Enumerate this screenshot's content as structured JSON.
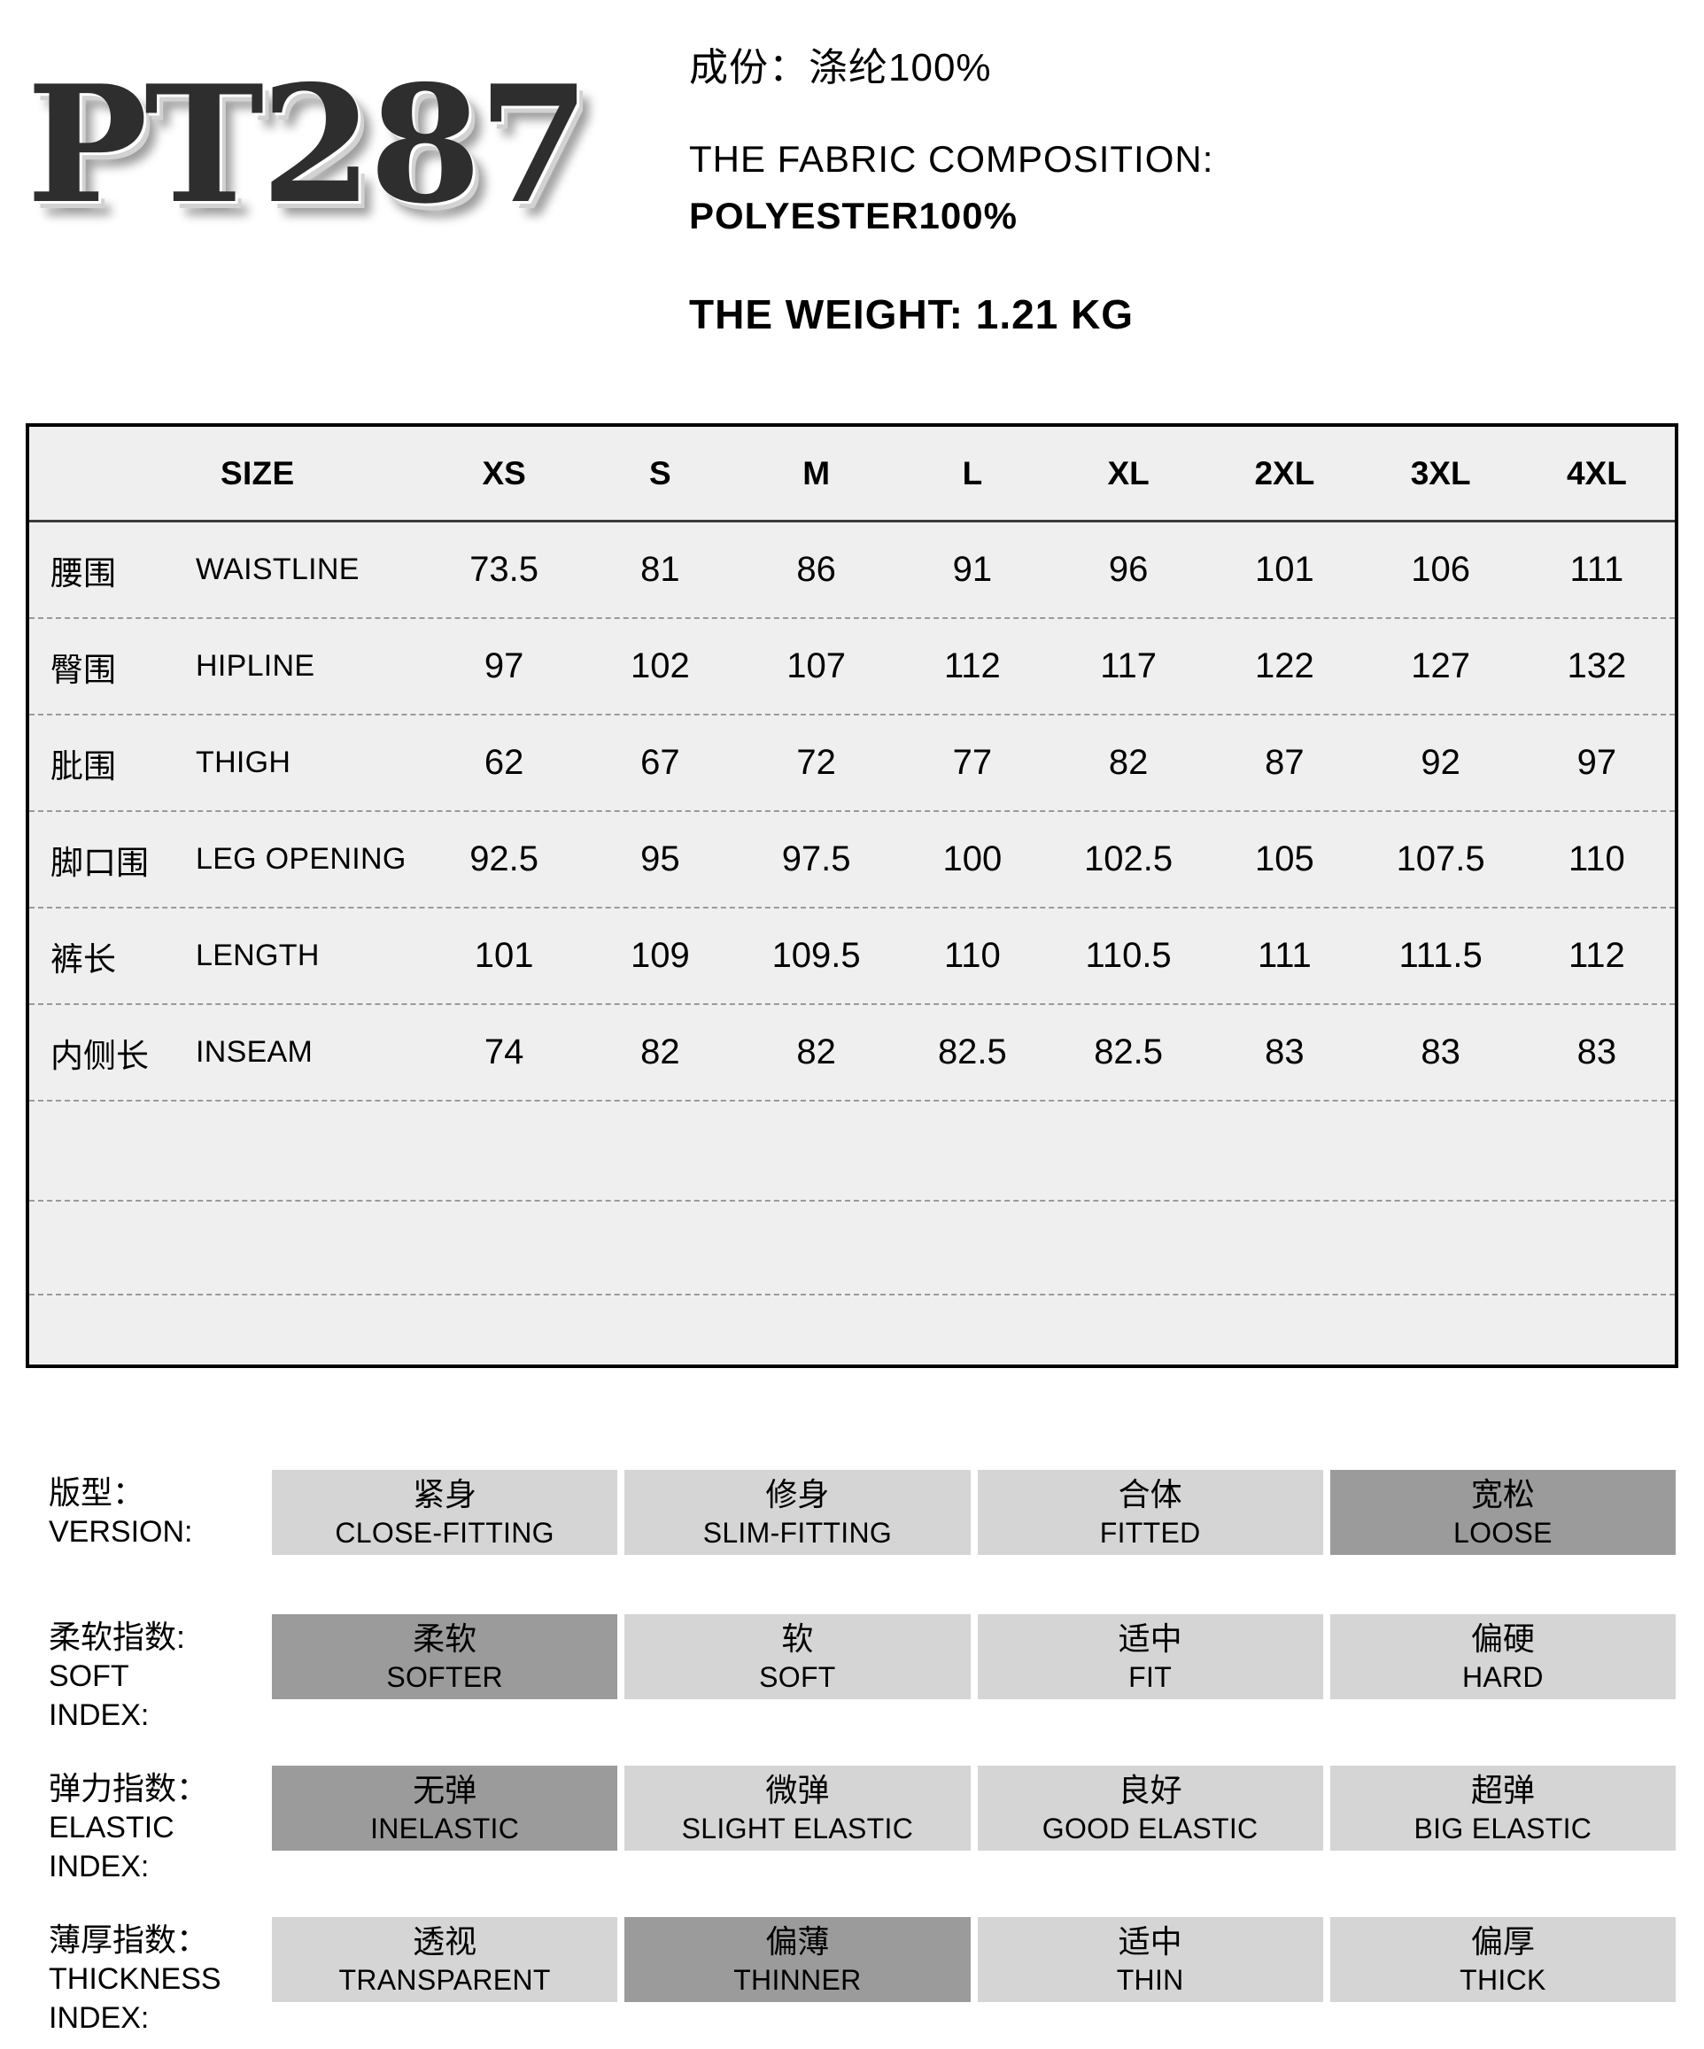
{
  "header": {
    "logo_text": "PT287",
    "composition_cn": "成份：涤纶100%",
    "composition_title": "THE FABRIC COMPOSITION:",
    "composition_value": "POLYESTER100%",
    "weight": "THE WEIGHT: 1.21 KG"
  },
  "size_table": {
    "columns": [
      "SIZE",
      "XS",
      "S",
      "M",
      "L",
      "XL",
      "2XL",
      "3XL",
      "4XL"
    ],
    "rows": [
      {
        "cn": "腰围",
        "en": "WAISTLINE",
        "values": [
          "73.5",
          "81",
          "86",
          "91",
          "96",
          "101",
          "106",
          "111"
        ]
      },
      {
        "cn": "臀围",
        "en": "HIPLINE",
        "values": [
          "97",
          "102",
          "107",
          "112",
          "117",
          "122",
          "127",
          "132"
        ]
      },
      {
        "cn": "肶围",
        "en": "THIGH",
        "values": [
          "62",
          "67",
          "72",
          "77",
          "82",
          "87",
          "92",
          "97"
        ]
      },
      {
        "cn": "脚口围",
        "en": "LEG OPENING",
        "values": [
          "92.5",
          "95",
          "97.5",
          "100",
          "102.5",
          "105",
          "107.5",
          "110"
        ]
      },
      {
        "cn": "裤长",
        "en": "LENGTH",
        "values": [
          "101",
          "109",
          "109.5",
          "110",
          "110.5",
          "111",
          "111.5",
          "112"
        ]
      },
      {
        "cn": "内侧长",
        "en": "INSEAM",
        "values": [
          "74",
          "82",
          "82",
          "82.5",
          "82.5",
          "83",
          "83",
          "83"
        ]
      }
    ]
  },
  "indexes": {
    "colors": {
      "option_bg": "#d5d5d5",
      "option_selected_bg": "#9b9b9b"
    },
    "rows": [
      {
        "label_cn": "版型：",
        "label_en_lines": [
          "VERSION:"
        ],
        "options": [
          {
            "cn": "紧身",
            "en": "CLOSE-FITTING",
            "selected": false
          },
          {
            "cn": "修身",
            "en": "SLIM-FITTING",
            "selected": false
          },
          {
            "cn": "合体",
            "en": "FITTED",
            "selected": false
          },
          {
            "cn": "宽松",
            "en": "LOOSE",
            "selected": true
          }
        ]
      },
      {
        "label_cn": "柔软指数:",
        "label_en_lines": [
          "SOFT",
          "INDEX:"
        ],
        "options": [
          {
            "cn": "柔软",
            "en": "SOFTER",
            "selected": true
          },
          {
            "cn": "软",
            "en": "SOFT",
            "selected": false
          },
          {
            "cn": "适中",
            "en": "FIT",
            "selected": false
          },
          {
            "cn": "偏硬",
            "en": "HARD",
            "selected": false
          }
        ]
      },
      {
        "label_cn": "弹力指数：",
        "label_en_lines": [
          "ELASTIC",
          "INDEX:"
        ],
        "options": [
          {
            "cn": "无弹",
            "en": "INELASTIC",
            "selected": true
          },
          {
            "cn": "微弹",
            "en": "SLIGHT ELASTIC",
            "selected": false
          },
          {
            "cn": "良好",
            "en": "GOOD ELASTIC",
            "selected": false
          },
          {
            "cn": "超弹",
            "en": "BIG ELASTIC",
            "selected": false
          }
        ]
      },
      {
        "label_cn": "薄厚指数：",
        "label_en_lines": [
          "THICKNESS",
          "INDEX:"
        ],
        "options": [
          {
            "cn": "透视",
            "en": "TRANSPARENT",
            "selected": false
          },
          {
            "cn": "偏薄",
            "en": "THINNER",
            "selected": true
          },
          {
            "cn": "适中",
            "en": "THIN",
            "selected": false
          },
          {
            "cn": "偏厚",
            "en": "THICK",
            "selected": false
          }
        ]
      }
    ]
  }
}
